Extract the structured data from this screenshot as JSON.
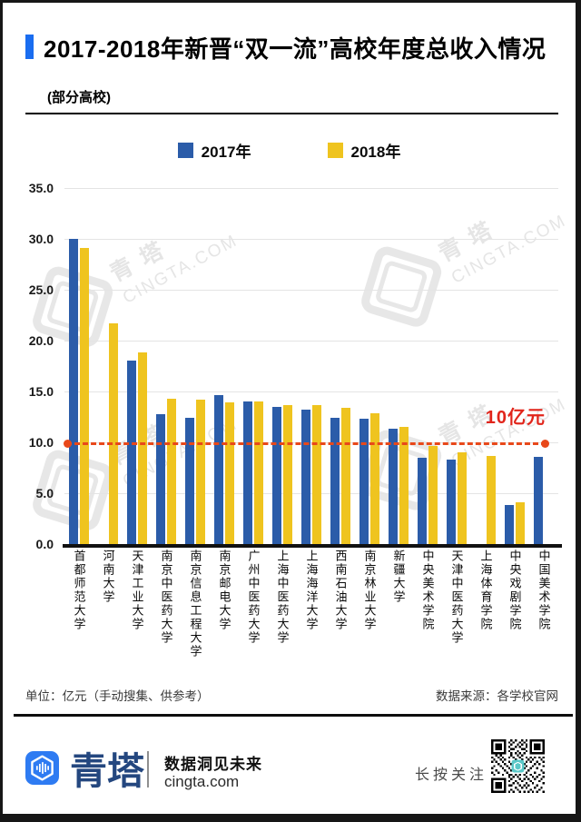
{
  "header": {
    "title": "2017-2018年新晋“双一流”高校年度总收入情况",
    "subtitle": "(部分高校)"
  },
  "chart_data": {
    "type": "bar",
    "title": "2017-2018年新晋“双一流”高校年度总收入情况(部分高校)",
    "unit": "亿元",
    "categories": [
      "首都师范大学",
      "河南大学",
      "天津工业大学",
      "南京中医药大学",
      "南京信息工程大学",
      "南京邮电大学",
      "广州中医药大学",
      "上海中医药大学",
      "上海海洋大学",
      "西南石油大学",
      "南京林业大学",
      "新疆大学",
      "中央美术学院",
      "天津中医药大学",
      "上海体育学院",
      "中央戏剧学院",
      "中国美术学院"
    ],
    "series": [
      {
        "name": "2017年",
        "color": "#2B5CA9",
        "values": [
          30.0,
          null,
          18.0,
          12.8,
          12.4,
          14.6,
          14.0,
          13.5,
          13.2,
          12.4,
          12.3,
          11.3,
          8.5,
          8.3,
          null,
          3.8,
          8.6
        ]
      },
      {
        "name": "2018年",
        "color": "#EFC41F",
        "values": [
          29.1,
          21.7,
          18.8,
          14.3,
          14.2,
          13.9,
          14.0,
          13.7,
          13.7,
          13.4,
          12.9,
          11.5,
          9.6,
          9.0,
          8.7,
          4.1,
          null
        ]
      }
    ],
    "ylim": [
      0,
      35
    ],
    "yticks": [
      "35.0",
      "30.0",
      "25.0",
      "20.0",
      "15.0",
      "10.0",
      "5.0",
      "0.0"
    ],
    "grid": true,
    "legend_position": "top",
    "reference_line": {
      "value": 10,
      "label": "10亿元",
      "color": "#E8481A",
      "label_color": "#E1251B"
    }
  },
  "watermark": {
    "brand": "青塔",
    "site": "CINGTA.COM"
  },
  "footnotes": {
    "left": "单位：亿元（手动搜集、供参考）",
    "right": "数据来源：各学校官网"
  },
  "brand_bar": {
    "logo_text": "青塔",
    "slogan": "数据洞见未来",
    "website": "cingta.com",
    "follow": "长按关注"
  }
}
